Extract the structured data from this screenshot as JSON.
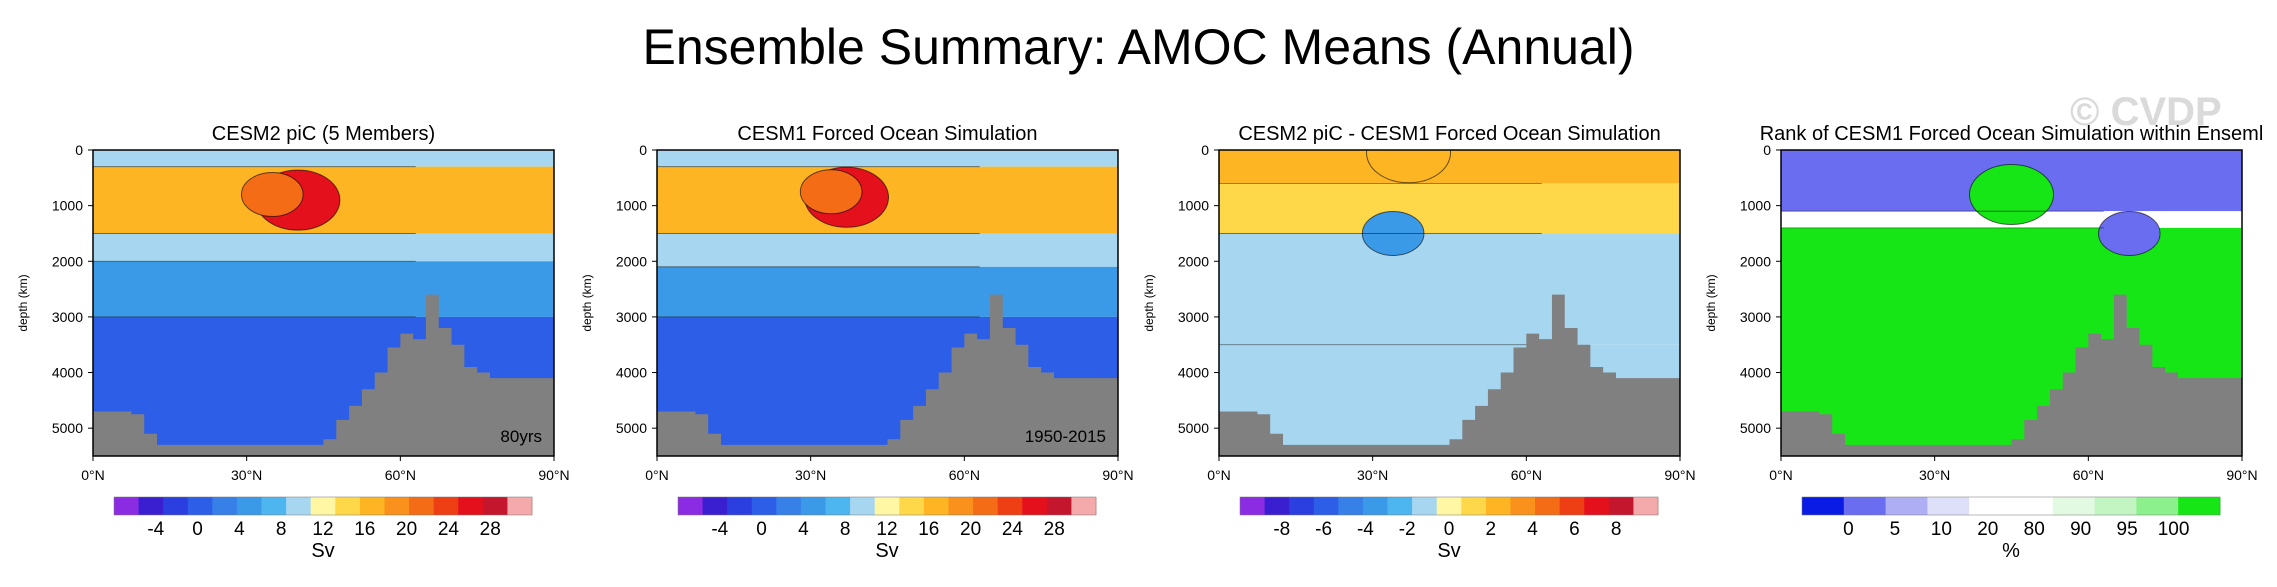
{
  "page_title": "Ensemble Summary: AMOC Means (Annual)",
  "watermark": "© CVDP",
  "chart_data": [
    {
      "type": "heatmap",
      "title": "CESM2 piC (5 Members)",
      "ylabel": "depth (km)",
      "xlabel": "",
      "x_ticks": [
        "0°N",
        "30°N",
        "60°N",
        "90°N"
      ],
      "x_range": [
        0,
        90
      ],
      "y_ticks": [
        "0",
        "1000",
        "2000",
        "3000",
        "4000",
        "5000"
      ],
      "y_range": [
        0,
        5500
      ],
      "annotation": "80yrs",
      "bottom_depth": [
        4700,
        4700,
        4700,
        4750,
        5100,
        5300,
        5300,
        5300,
        5300,
        5300,
        5300,
        5300,
        5300,
        5300,
        5300,
        5300,
        5300,
        5300,
        5200,
        4850,
        4600,
        4300,
        4000,
        3550,
        3300,
        3400,
        2600,
        3200,
        3500,
        3900,
        4000,
        4100,
        4100,
        4100,
        4100,
        4100
      ],
      "colorbar": {
        "ticks": [
          "-4",
          "0",
          "4",
          "8",
          "12",
          "16",
          "20",
          "24",
          "28"
        ],
        "unit": "Sv",
        "colors": [
          "#8b2be2",
          "#3a1fd1",
          "#2b3fe0",
          "#2c5ee7",
          "#3780e8",
          "#3b9ae8",
          "#4eb6ee",
          "#a7d7f0",
          "#fff7a4",
          "#ffd84a",
          "#fdb523",
          "#f9911c",
          "#f46d16",
          "#ee3f14",
          "#e4111d",
          "#c4162d",
          "#f4a9aa"
        ]
      },
      "bands": [
        {
          "depth_top": 0,
          "depth_bottom": 300,
          "value": 8
        },
        {
          "depth_top": 300,
          "depth_bottom": 1500,
          "value": 16
        },
        {
          "depth_top": 1500,
          "depth_bottom": 2000,
          "value": 8
        },
        {
          "depth_top": 2000,
          "depth_bottom": 3000,
          "value": 4
        },
        {
          "depth_top": 3000,
          "depth_bottom": 5500,
          "value": 0
        }
      ],
      "peaks": [
        {
          "lat": 40,
          "depth": 900,
          "value": 24
        },
        {
          "lat": 35,
          "depth": 800,
          "value": 20
        }
      ]
    },
    {
      "type": "heatmap",
      "title": "CESM1 Forced Ocean Simulation",
      "ylabel": "depth (km)",
      "xlabel": "",
      "x_ticks": [
        "0°N",
        "30°N",
        "60°N",
        "90°N"
      ],
      "x_range": [
        0,
        90
      ],
      "y_ticks": [
        "0",
        "1000",
        "2000",
        "3000",
        "4000",
        "5000"
      ],
      "y_range": [
        0,
        5500
      ],
      "annotation": "1950-2015",
      "bottom_depth": [
        4700,
        4700,
        4700,
        4750,
        5100,
        5300,
        5300,
        5300,
        5300,
        5300,
        5300,
        5300,
        5300,
        5300,
        5300,
        5300,
        5300,
        5300,
        5200,
        4850,
        4600,
        4300,
        4000,
        3550,
        3300,
        3400,
        2600,
        3200,
        3500,
        3900,
        4000,
        4100,
        4100,
        4100,
        4100,
        4100
      ],
      "colorbar": {
        "ticks": [
          "-4",
          "0",
          "4",
          "8",
          "12",
          "16",
          "20",
          "24",
          "28"
        ],
        "unit": "Sv",
        "colors": [
          "#8b2be2",
          "#3a1fd1",
          "#2b3fe0",
          "#2c5ee7",
          "#3780e8",
          "#3b9ae8",
          "#4eb6ee",
          "#a7d7f0",
          "#fff7a4",
          "#ffd84a",
          "#fdb523",
          "#f9911c",
          "#f46d16",
          "#ee3f14",
          "#e4111d",
          "#c4162d",
          "#f4a9aa"
        ]
      },
      "bands": [
        {
          "depth_top": 0,
          "depth_bottom": 300,
          "value": 8
        },
        {
          "depth_top": 300,
          "depth_bottom": 1500,
          "value": 16
        },
        {
          "depth_top": 1500,
          "depth_bottom": 2100,
          "value": 8
        },
        {
          "depth_top": 2100,
          "depth_bottom": 3000,
          "value": 4
        },
        {
          "depth_top": 3000,
          "depth_bottom": 5500,
          "value": 0
        }
      ],
      "peaks": [
        {
          "lat": 37,
          "depth": 850,
          "value": 26
        },
        {
          "lat": 34,
          "depth": 750,
          "value": 22
        }
      ]
    },
    {
      "type": "heatmap",
      "title": "CESM2 piC - CESM1 Forced Ocean Simulation",
      "ylabel": "depth (km)",
      "xlabel": "",
      "x_ticks": [
        "0°N",
        "30°N",
        "60°N",
        "90°N"
      ],
      "x_range": [
        0,
        90
      ],
      "y_ticks": [
        "0",
        "1000",
        "2000",
        "3000",
        "4000",
        "5000"
      ],
      "y_range": [
        0,
        5500
      ],
      "annotation": "",
      "bottom_depth": [
        4700,
        4700,
        4700,
        4750,
        5100,
        5300,
        5300,
        5300,
        5300,
        5300,
        5300,
        5300,
        5300,
        5300,
        5300,
        5300,
        5300,
        5300,
        5200,
        4850,
        4600,
        4300,
        4000,
        3550,
        3300,
        3400,
        2600,
        3200,
        3500,
        3900,
        4000,
        4100,
        4100,
        4100,
        4100,
        4100
      ],
      "colorbar": {
        "ticks": [
          "-8",
          "-6",
          "-4",
          "-2",
          "0",
          "2",
          "4",
          "6",
          "8"
        ],
        "unit": "Sv",
        "colors": [
          "#8b2be2",
          "#3a1fd1",
          "#2b3fe0",
          "#2c5ee7",
          "#3780e8",
          "#3b9ae8",
          "#4eb6ee",
          "#a7d7f0",
          "#fff7a4",
          "#ffd84a",
          "#fdb523",
          "#f9911c",
          "#f46d16",
          "#ee3f14",
          "#e4111d",
          "#c4162d",
          "#f4a9aa"
        ]
      },
      "bands": [
        {
          "depth_top": 0,
          "depth_bottom": 600,
          "value": 2
        },
        {
          "depth_top": 600,
          "depth_bottom": 1500,
          "value": 0.5
        },
        {
          "depth_top": 1500,
          "depth_bottom": 3500,
          "value": -1
        },
        {
          "depth_top": 3500,
          "depth_bottom": 5500,
          "value": -0.5
        }
      ],
      "peaks": [
        {
          "lat": 37,
          "depth": 50,
          "value": 3
        },
        {
          "lat": 34,
          "depth": 1500,
          "value": -3
        }
      ]
    },
    {
      "type": "heatmap",
      "title": "Rank of CESM1 Forced Ocean Simulation within Enseml",
      "ylabel": "depth (km)",
      "xlabel": "",
      "x_ticks": [
        "0°N",
        "30°N",
        "60°N",
        "90°N"
      ],
      "x_range": [
        0,
        90
      ],
      "y_ticks": [
        "0",
        "1000",
        "2000",
        "3000",
        "4000",
        "5000"
      ],
      "y_range": [
        0,
        5500
      ],
      "annotation": "",
      "bottom_depth": [
        4700,
        4700,
        4700,
        4750,
        5100,
        5300,
        5300,
        5300,
        5300,
        5300,
        5300,
        5300,
        5300,
        5300,
        5300,
        5300,
        5300,
        5300,
        5200,
        4850,
        4600,
        4300,
        4000,
        3550,
        3300,
        3400,
        2600,
        3200,
        3500,
        3900,
        4000,
        4100,
        4100,
        4100,
        4100,
        4100
      ],
      "colorbar": {
        "ticks": [
          "0",
          "5",
          "10",
          "20",
          "80",
          "90",
          "95",
          "100"
        ],
        "unit": "%",
        "colors": [
          "#0a1be6",
          "#6b6df0",
          "#adaef3",
          "#dedff8",
          "#ffffff",
          "#ffffff",
          "#e2f9e2",
          "#c3f5c3",
          "#8cf08c",
          "#16e616"
        ]
      },
      "bands": [
        {
          "depth_top": 0,
          "depth_bottom": 1100,
          "value": 0
        },
        {
          "depth_top": 1100,
          "depth_bottom": 1400,
          "value": 50
        },
        {
          "depth_top": 1400,
          "depth_bottom": 5500,
          "value": 100
        }
      ],
      "peaks": [
        {
          "lat": 45,
          "depth": 800,
          "value": 100
        },
        {
          "lat": 68,
          "depth": 1500,
          "value": 0
        }
      ]
    }
  ]
}
